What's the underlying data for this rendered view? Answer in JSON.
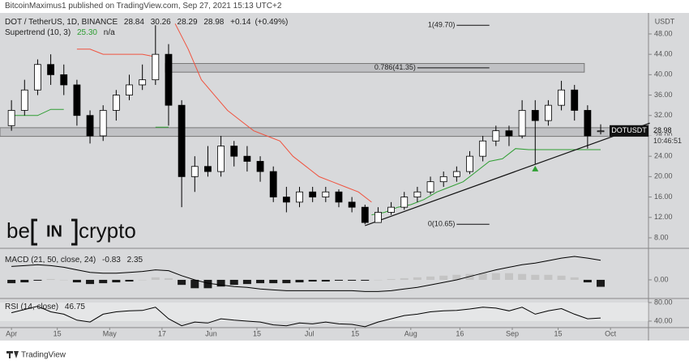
{
  "published": "BitcoinMaximus1 published on TradingView.com, Sep 27, 2021 15:13 UTC+2",
  "footer": "TradingView",
  "logo": [
    "be",
    "IN",
    "crypto"
  ],
  "chart_data": [
    {
      "type": "candlestick",
      "title": "DOT / TetherUS, 1D, BINANCE",
      "y_unit": "USDT",
      "symbol": "DOTUSDT",
      "countdown": "10:46:51",
      "change": "+0.14",
      "change_pct": "(+0.49%)",
      "x": [
        0,
        4,
        8,
        12,
        16,
        20,
        24,
        28,
        32,
        36,
        40,
        44,
        48,
        52,
        56,
        60,
        64,
        68,
        72,
        76,
        80,
        84,
        88,
        92,
        96,
        100,
        104,
        108,
        112,
        116,
        120,
        124,
        128,
        132,
        136,
        140,
        144,
        148,
        152,
        156,
        160,
        164,
        168,
        172,
        176,
        180
      ],
      "open": [
        30,
        33,
        37,
        42,
        40,
        38,
        32,
        28,
        33,
        36,
        38,
        39,
        44,
        34,
        20,
        22,
        21,
        26,
        24,
        23,
        21,
        16,
        15,
        17,
        16,
        17,
        15,
        14,
        11,
        13,
        14,
        16,
        17,
        19,
        20,
        21,
        24,
        27,
        29,
        28,
        33,
        31,
        34,
        37,
        33,
        28.84
      ],
      "high": [
        35,
        39,
        43,
        44,
        42,
        39,
        33,
        34,
        37,
        40,
        42,
        49.7,
        46,
        35,
        24,
        26,
        28,
        27,
        26,
        24,
        22,
        18,
        18,
        18,
        18,
        17.5,
        16,
        14.5,
        14,
        15,
        17,
        18,
        20,
        21,
        22,
        25,
        28,
        30,
        30,
        35,
        35,
        35,
        38.8,
        38,
        34,
        30.26
      ],
      "low": [
        29,
        32,
        36,
        38,
        36,
        30,
        26.5,
        27,
        31,
        35,
        37,
        38,
        30,
        14,
        17,
        20,
        20,
        22,
        21,
        19,
        15,
        13,
        14,
        15,
        15,
        14,
        13,
        10.65,
        11,
        12.5,
        13.5,
        15,
        16.5,
        18,
        19,
        20.5,
        23,
        26,
        26,
        27.5,
        22.5,
        30,
        33,
        31,
        25.5,
        28.29
      ],
      "close": [
        33,
        37,
        42,
        40,
        38,
        32,
        28,
        33,
        36,
        38,
        39,
        44,
        34,
        20,
        22,
        21,
        26,
        24,
        23,
        21,
        16,
        15,
        17,
        16,
        17,
        15,
        14,
        11,
        13,
        14,
        16,
        17,
        19,
        20,
        21,
        24,
        27,
        29,
        28,
        33,
        31,
        34,
        37,
        33,
        28,
        28.98
      ],
      "colors": {
        "up": "#ffffff",
        "down": "#000000"
      },
      "xlim": [
        -3.5,
        194.6
      ],
      "xticks": [
        {
          "value": 0,
          "label": "Apr"
        },
        {
          "value": 14,
          "label": "15"
        },
        {
          "value": 30,
          "label": "May"
        },
        {
          "value": 46,
          "label": "17"
        },
        {
          "value": 61,
          "label": "Jun"
        },
        {
          "value": 75,
          "label": "15"
        },
        {
          "value": 91,
          "label": "Jul"
        },
        {
          "value": 105,
          "label": "15"
        },
        {
          "value": 122,
          "label": "Aug"
        },
        {
          "value": 137,
          "label": "16"
        },
        {
          "value": 153,
          "label": "Sep"
        },
        {
          "value": 167,
          "label": "15"
        },
        {
          "value": 183,
          "label": "Oct"
        }
      ],
      "ylim": [
        6.25,
        51.8
      ],
      "yticks": [
        {
          "value": 8,
          "label": "8.00"
        },
        {
          "value": 12,
          "label": "12.00"
        },
        {
          "value": 16,
          "label": "16.00"
        },
        {
          "value": 20,
          "label": "20.00"
        },
        {
          "value": 24,
          "label": "24.00"
        },
        {
          "value": 28,
          "label": "28.00"
        },
        {
          "value": 32,
          "label": "32.00"
        },
        {
          "value": 36,
          "label": "36.00"
        },
        {
          "value": 40,
          "label": "40.00"
        },
        {
          "value": 44,
          "label": "44.00"
        },
        {
          "value": 48,
          "label": "48.00"
        }
      ],
      "supertrend": {
        "name": "Supertrend (10, 3)",
        "value_label": "25.30",
        "second": "n/a",
        "lines": [
          {
            "color": "#f0533f",
            "x": [
              20,
              24,
              28,
              32,
              36,
              40,
              44,
              48,
              50,
              54,
              58,
              62,
              66,
              70,
              74,
              78,
              82,
              86,
              90,
              94,
              98,
              102,
              106,
              110
            ],
            "values": [
              45,
              45,
              44,
              44,
              44,
              44,
              43.5,
              null,
              50,
              45,
              39,
              36,
              33,
              31,
              29,
              28,
              27,
              24,
              22,
              20,
              19,
              18,
              17,
              15
            ]
          },
          {
            "color": "#2e9e32",
            "x": [
              0,
              4,
              8,
              12,
              16,
              18,
              44,
              48,
              50,
              110,
              114,
              118,
              122,
              126,
              130,
              134,
              138,
              142,
              146,
              150,
              154,
              158,
              162,
              166,
              170,
              174,
              178,
              180
            ],
            "values": [
              32,
              32,
              32,
              33.2,
              33.2,
              null,
              29.7,
              29.7,
              null,
              12.5,
              13,
              14,
              14.5,
              15.5,
              17,
              18,
              19,
              21,
              23,
              23.5,
              25.5,
              25.3,
              25.3,
              25.3,
              25.3,
              25.3,
              25.3,
              25.3
            ]
          }
        ]
      },
      "fib_levels": [
        {
          "label": "1(49.70)",
          "value": 49.7,
          "x_range": [
            136,
            146
          ]
        },
        {
          "label": "0.786(41.35)",
          "value": 41.35,
          "x_range": [
            124,
            146
          ]
        },
        {
          "label": "0(10.65)",
          "value": 10.65,
          "x_range": [
            136,
            146
          ]
        }
      ],
      "zones": [
        {
          "low": 40.5,
          "high": 42.2,
          "x_range": [
            47,
            175
          ]
        },
        {
          "low": 27.9,
          "high": 29.6
        }
      ],
      "trendline": {
        "x": [
          108,
          195
        ],
        "values": [
          10.4,
          30.5
        ]
      },
      "signals": [
        {
          "x": 160,
          "value": 21.5,
          "color": "#2e9e32"
        }
      ]
    },
    {
      "type": "macd",
      "title": "MACD (21, 50, close, 24)",
      "histogram": [
        -0.4,
        -0.3,
        -0.1,
        0.1,
        0.0,
        -0.3,
        -0.5,
        -0.4,
        -0.3,
        -0.2,
        0.0,
        0.3,
        0.2,
        -0.6,
        -1.0,
        -1.0,
        -0.8,
        -0.6,
        -0.5,
        -0.4,
        -0.4,
        -0.4,
        -0.3,
        -0.2,
        -0.2,
        -0.1,
        -0.1,
        -0.1,
        0.0,
        0.1,
        0.2,
        0.3,
        0.4,
        0.5,
        0.6,
        0.7,
        0.8,
        0.8,
        0.8,
        0.7,
        0.6,
        0.6,
        0.5,
        0.3,
        -0.3,
        -0.83
      ],
      "macd": [
        1.6,
        1.7,
        1.8,
        1.7,
        1.5,
        1.2,
        0.9,
        0.8,
        0.8,
        0.9,
        1.0,
        1.2,
        1.1,
        0.5,
        0.0,
        -0.4,
        -0.6,
        -0.8,
        -0.9,
        -1.1,
        -1.2,
        -1.3,
        -1.3,
        -1.3,
        -1.3,
        -1.3,
        -1.3,
        -1.4,
        -1.4,
        -1.3,
        -1.1,
        -0.9,
        -0.6,
        -0.3,
        0.0,
        0.4,
        0.8,
        1.2,
        1.5,
        1.8,
        2.0,
        2.3,
        2.6,
        2.8,
        2.6,
        2.35
      ],
      "colors": {
        "positive": "#c4c4c4",
        "negative": "#1a1a1a",
        "line": "#000000"
      },
      "ylim": [
        -2.13,
        3.67
      ],
      "yticks": [
        {
          "value": 0,
          "label": "0.00"
        }
      ]
    },
    {
      "type": "line",
      "title": "RSI (14, close)",
      "values": [
        58,
        65,
        72,
        60,
        55,
        42,
        38,
        55,
        60,
        62,
        63,
        70,
        45,
        30,
        38,
        36,
        45,
        42,
        40,
        38,
        32,
        30,
        36,
        34,
        38,
        34,
        33,
        28,
        38,
        45,
        52,
        55,
        60,
        62,
        63,
        66,
        70,
        68,
        62,
        70,
        55,
        62,
        67,
        55,
        45,
        46.75
      ],
      "color": "#000000",
      "ylim": [
        26,
        87
      ],
      "yticks": [
        {
          "value": 80,
          "label": "80.00"
        },
        {
          "value": 40,
          "label": "40.00"
        }
      ]
    }
  ]
}
